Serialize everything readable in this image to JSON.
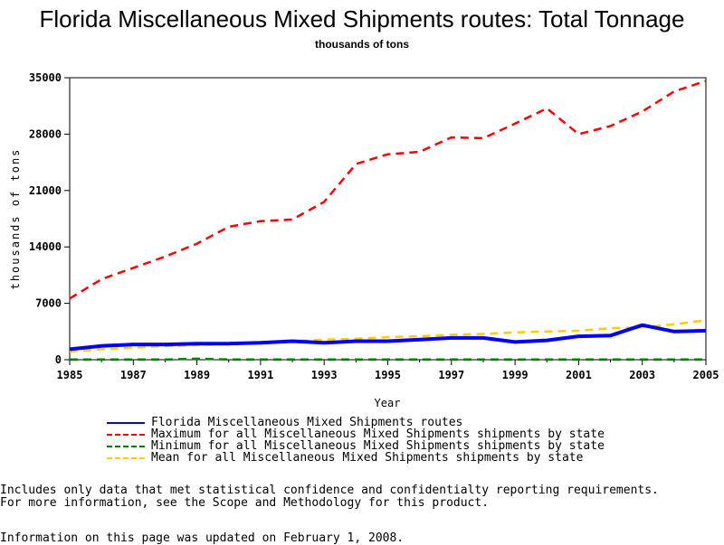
{
  "chart_data": {
    "type": "line",
    "title": "Florida Miscellaneous Mixed Shipments routes: Total Tonnage",
    "subtitle": "thousands of tons",
    "xlabel": "Year",
    "ylabel": "thousands of tons",
    "xlim": [
      1985,
      2005
    ],
    "ylim": [
      0,
      35000
    ],
    "xticks": [
      "1985",
      "1987",
      "1989",
      "1991",
      "1993",
      "1995",
      "1997",
      "1999",
      "2001",
      "2003",
      "2005"
    ],
    "yticks": [
      "0",
      "7000",
      "14000",
      "21000",
      "28000",
      "35000"
    ],
    "x": [
      1985,
      1986,
      1987,
      1988,
      1989,
      1990,
      1991,
      1992,
      1993,
      1994,
      1995,
      1996,
      1997,
      1998,
      1999,
      2000,
      2001,
      2002,
      2003,
      2004,
      2005
    ],
    "series": [
      {
        "name": "Florida Miscellaneous Mixed Shipments routes",
        "color": "#0000ff",
        "style": "solid",
        "values": [
          1300,
          1700,
          1900,
          1900,
          2000,
          2000,
          2100,
          2300,
          2100,
          2300,
          2300,
          2500,
          2700,
          2700,
          2200,
          2400,
          2900,
          3000,
          4300,
          3500,
          3600
        ]
      },
      {
        "name": "Maximum for all Miscellaneous Mixed Shipments shipments by state",
        "color": "#ff0000",
        "style": "dashed",
        "values": [
          7600,
          10000,
          11400,
          12800,
          14400,
          16500,
          17200,
          17400,
          19600,
          24300,
          25500,
          25800,
          27600,
          27500,
          29300,
          31200,
          28000,
          29000,
          30800,
          33300,
          34600
        ]
      },
      {
        "name": "Minimum for all Miscellaneous Mixed Shipments shipments by state",
        "color": "#008000",
        "style": "dashed",
        "values": [
          20,
          20,
          20,
          20,
          120,
          30,
          20,
          20,
          20,
          20,
          20,
          20,
          20,
          20,
          20,
          20,
          20,
          20,
          20,
          20,
          20
        ]
      },
      {
        "name": "Mean for all Miscellaneous Mixed Shipments shipments by state",
        "color": "#ffcc00",
        "style": "dashed",
        "values": [
          1000,
          1300,
          1500,
          1700,
          1800,
          2000,
          2200,
          2300,
          2500,
          2600,
          2800,
          2900,
          3100,
          3200,
          3400,
          3500,
          3600,
          3900,
          4000,
          4400,
          4900
        ]
      }
    ],
    "grid": false,
    "legend_placement": "bottom"
  },
  "notes": {
    "line1": "Includes only data that met statistical confidence and confidentialty reporting requirements.",
    "line2": "For more information, see the Scope and Methodology for this product.",
    "updated": "Information on this page was updated on February 1, 2008."
  }
}
